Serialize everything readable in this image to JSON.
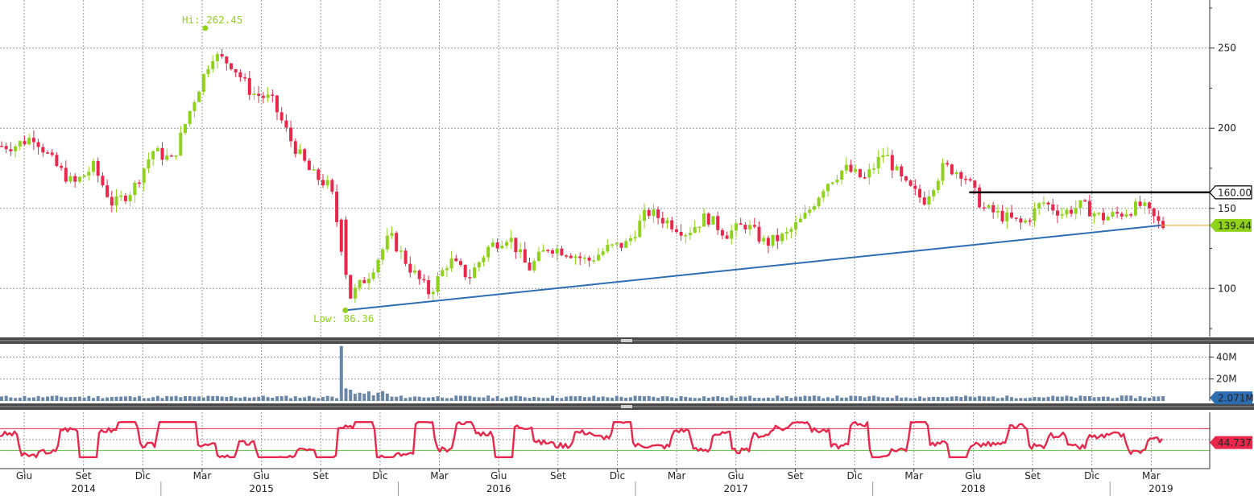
{
  "chart_data": [
    {
      "type": "candlestick",
      "panel": "price",
      "y_ticks": [
        100,
        150,
        200,
        250
      ],
      "ylim": [
        70,
        280
      ],
      "annotations": {
        "high": {
          "text": "Hi: 262.45",
          "value": 262.45,
          "date": "2015-03"
        },
        "low": {
          "text": "Low: 86.36",
          "value": 86.36,
          "date": "2015-10"
        }
      },
      "last_price": "139.44",
      "resistance_level": {
        "value": 160,
        "label": "160.00",
        "from": "2018-06",
        "to": "2019-03"
      },
      "trendline": {
        "from": {
          "date": "2015-10",
          "value": 86.4
        },
        "to": {
          "date": "2019-03",
          "value": 139.4
        }
      },
      "monthly_close": [
        {
          "date": "2014-05",
          "close": 189
        },
        {
          "date": "2014-06",
          "close": 195
        },
        {
          "date": "2014-07",
          "close": 178
        },
        {
          "date": "2014-08",
          "close": 165
        },
        {
          "date": "2014-09",
          "close": 176
        },
        {
          "date": "2014-10",
          "close": 152
        },
        {
          "date": "2014-11",
          "close": 162
        },
        {
          "date": "2014-12",
          "close": 186
        },
        {
          "date": "2015-01",
          "close": 180
        },
        {
          "date": "2015-02",
          "close": 215
        },
        {
          "date": "2015-03",
          "close": 246
        },
        {
          "date": "2015-04",
          "close": 240
        },
        {
          "date": "2015-05",
          "close": 222
        },
        {
          "date": "2015-06",
          "close": 218
        },
        {
          "date": "2015-07",
          "close": 192
        },
        {
          "date": "2015-08",
          "close": 172
        },
        {
          "date": "2015-09",
          "close": 163
        },
        {
          "date": "2015-10",
          "close": 95
        },
        {
          "date": "2015-11",
          "close": 110
        },
        {
          "date": "2015-12",
          "close": 133
        },
        {
          "date": "2016-01",
          "close": 113
        },
        {
          "date": "2016-02",
          "close": 97
        },
        {
          "date": "2016-03",
          "close": 118
        },
        {
          "date": "2016-04",
          "close": 107
        },
        {
          "date": "2016-05",
          "close": 126
        },
        {
          "date": "2016-06",
          "close": 133
        },
        {
          "date": "2016-07",
          "close": 112
        },
        {
          "date": "2016-08",
          "close": 126
        },
        {
          "date": "2016-09",
          "close": 123
        },
        {
          "date": "2016-10",
          "close": 117
        },
        {
          "date": "2016-11",
          "close": 125
        },
        {
          "date": "2016-12",
          "close": 128
        },
        {
          "date": "2017-01",
          "close": 148
        },
        {
          "date": "2017-02",
          "close": 142
        },
        {
          "date": "2017-03",
          "close": 135
        },
        {
          "date": "2017-04",
          "close": 145
        },
        {
          "date": "2017-05",
          "close": 134
        },
        {
          "date": "2017-06",
          "close": 140
        },
        {
          "date": "2017-07",
          "close": 128
        },
        {
          "date": "2017-08",
          "close": 133
        },
        {
          "date": "2017-09",
          "close": 145
        },
        {
          "date": "2017-10",
          "close": 165
        },
        {
          "date": "2017-11",
          "close": 175
        },
        {
          "date": "2017-12",
          "close": 168
        },
        {
          "date": "2018-01",
          "close": 185
        },
        {
          "date": "2018-02",
          "close": 165
        },
        {
          "date": "2018-03",
          "close": 155
        },
        {
          "date": "2018-04",
          "close": 176
        },
        {
          "date": "2018-05",
          "close": 172
        },
        {
          "date": "2018-06",
          "close": 150
        },
        {
          "date": "2018-07",
          "close": 145
        },
        {
          "date": "2018-08",
          "close": 140
        },
        {
          "date": "2018-09",
          "close": 154
        },
        {
          "date": "2018-10",
          "close": 147
        },
        {
          "date": "2018-11",
          "close": 152
        },
        {
          "date": "2018-12",
          "close": 144
        },
        {
          "date": "2019-01",
          "close": 147
        },
        {
          "date": "2019-02",
          "close": 152
        },
        {
          "date": "2019-03",
          "close": 139
        }
      ]
    },
    {
      "type": "bar",
      "panel": "volume",
      "y_ticks": [
        {
          "value": 20,
          "label": "20M"
        },
        {
          "value": 40,
          "label": "40M"
        }
      ],
      "ylim": [
        0,
        52
      ],
      "last_value": "2.071M",
      "spike": {
        "date": "2015-10",
        "value": 50
      }
    },
    {
      "type": "line",
      "panel": "rsi",
      "ylim": [
        0,
        100
      ],
      "upper_band": 70,
      "lower_band": 30,
      "last_value": "44.737"
    }
  ],
  "x_axis": {
    "months": [
      {
        "label": "Giu",
        "date": "2014-06"
      },
      {
        "label": "Set",
        "date": "2014-09"
      },
      {
        "label": "Dic",
        "date": "2014-12"
      },
      {
        "label": "Mar",
        "date": "2015-03"
      },
      {
        "label": "Giu",
        "date": "2015-06"
      },
      {
        "label": "Set",
        "date": "2015-09"
      },
      {
        "label": "Dic",
        "date": "2015-12"
      },
      {
        "label": "Mar",
        "date": "2016-03"
      },
      {
        "label": "Giu",
        "date": "2016-06"
      },
      {
        "label": "Set",
        "date": "2016-09"
      },
      {
        "label": "Dic",
        "date": "2016-12"
      },
      {
        "label": "Mar",
        "date": "2017-03"
      },
      {
        "label": "Giu",
        "date": "2017-06"
      },
      {
        "label": "Set",
        "date": "2017-09"
      },
      {
        "label": "Dic",
        "date": "2017-12"
      },
      {
        "label": "Mar",
        "date": "2018-03"
      },
      {
        "label": "Giu",
        "date": "2018-06"
      },
      {
        "label": "Set",
        "date": "2018-09"
      },
      {
        "label": "Dic",
        "date": "2018-12"
      },
      {
        "label": "Mar",
        "date": "2019-03"
      }
    ],
    "years": [
      {
        "label": "2014",
        "date": "2014-09"
      },
      {
        "label": "2015",
        "date": "2015-06"
      },
      {
        "label": "2016",
        "date": "2016-06"
      },
      {
        "label": "2017",
        "date": "2017-06"
      },
      {
        "label": "2018",
        "date": "2018-06"
      },
      {
        "label": "2019",
        "date": "2019-03"
      }
    ]
  },
  "colors": {
    "up": "#8fd21a",
    "down": "#e8274b",
    "trendline": "#2f6db3",
    "resistance": "#000000",
    "volume": "#6a86a8",
    "rsi_line": "#e8274b",
    "rsi_upper": "#e8274b",
    "rsi_lower": "#58c23c",
    "last_price_badge": "#8fd21a",
    "volume_badge": "#2f6db3",
    "rsi_badge": "#e8274b",
    "grid": "#9a9a9a"
  }
}
